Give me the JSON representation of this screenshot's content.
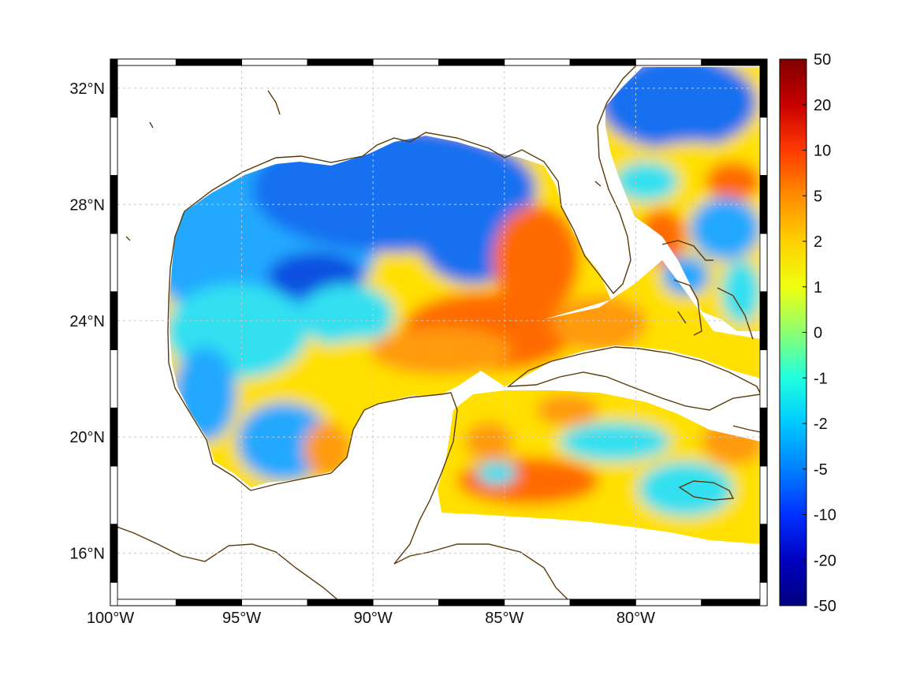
{
  "map": {
    "lon_range": [
      -100,
      -75
    ],
    "lat_range": [
      14.2,
      33
    ],
    "lon_ticks": [
      {
        "value": -100,
        "label": "100°W"
      },
      {
        "value": -95,
        "label": "95°W"
      },
      {
        "value": -90,
        "label": "90°W"
      },
      {
        "value": -85,
        "label": "85°W"
      },
      {
        "value": -80,
        "label": "80°W"
      }
    ],
    "lat_ticks": [
      {
        "value": 32,
        "label": "32°N"
      },
      {
        "value": 28,
        "label": "28°N"
      },
      {
        "value": 24,
        "label": "24°N"
      },
      {
        "value": 20,
        "label": "20°N"
      },
      {
        "value": 16,
        "label": "16°N"
      }
    ],
    "grid": true,
    "coast_color": "#5a3a0a",
    "land_color": "#ffffff"
  },
  "colorbar": {
    "ticks": [
      "50",
      "20",
      "10",
      "5",
      "2",
      "1",
      "0",
      "-1",
      "-2",
      "-5",
      "-10",
      "-20",
      "-50"
    ],
    "colors_top_to_bottom": [
      "#7f0000",
      "#c80000",
      "#ff3a00",
      "#ff8c00",
      "#ffd000",
      "#f0ff10",
      "#8cff70",
      "#20ffe0",
      "#00c8ff",
      "#0080ff",
      "#0030ff",
      "#0000c0",
      "#00007f"
    ]
  },
  "field_colors": {
    "warm": "#ff6a00",
    "orange": "#ff9a10",
    "yellow": "#ffe000",
    "green": "#a0f040",
    "cyan": "#30e0f0",
    "light_blue": "#20a8ff",
    "blue": "#1870f0",
    "deep_blue": "#0a50e0"
  }
}
